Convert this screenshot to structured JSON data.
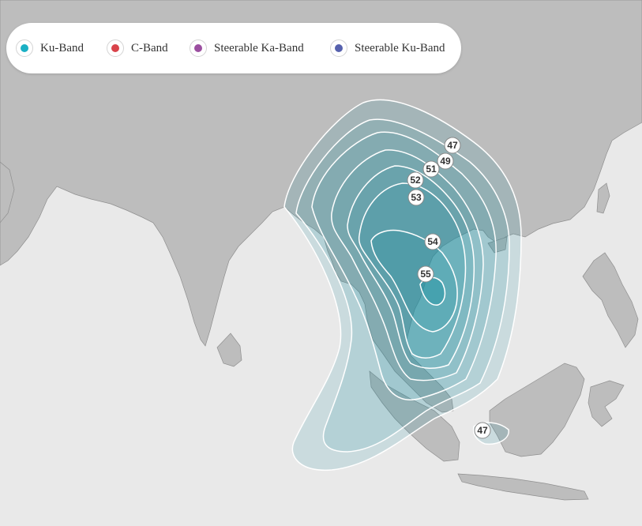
{
  "legend": {
    "items": [
      {
        "label": "Ku-Band",
        "color": "#1ab0c4"
      },
      {
        "label": "C-Band",
        "color": "#d9434a"
      },
      {
        "label": "Steerable Ka-Band",
        "color": "#9b4fa0"
      },
      {
        "label": "Steerable Ku-Band",
        "color": "#5661ad"
      }
    ]
  },
  "map": {
    "land_color": "#bdbdbd",
    "sea_color": "#e9e9e9",
    "beam_color": "#1a8ea0",
    "contours": [
      {
        "label": "47"
      },
      {
        "label": "49"
      },
      {
        "label": "51"
      },
      {
        "label": "52"
      },
      {
        "label": "53"
      },
      {
        "label": "54"
      },
      {
        "label": "55"
      },
      {
        "label": "47"
      }
    ]
  }
}
